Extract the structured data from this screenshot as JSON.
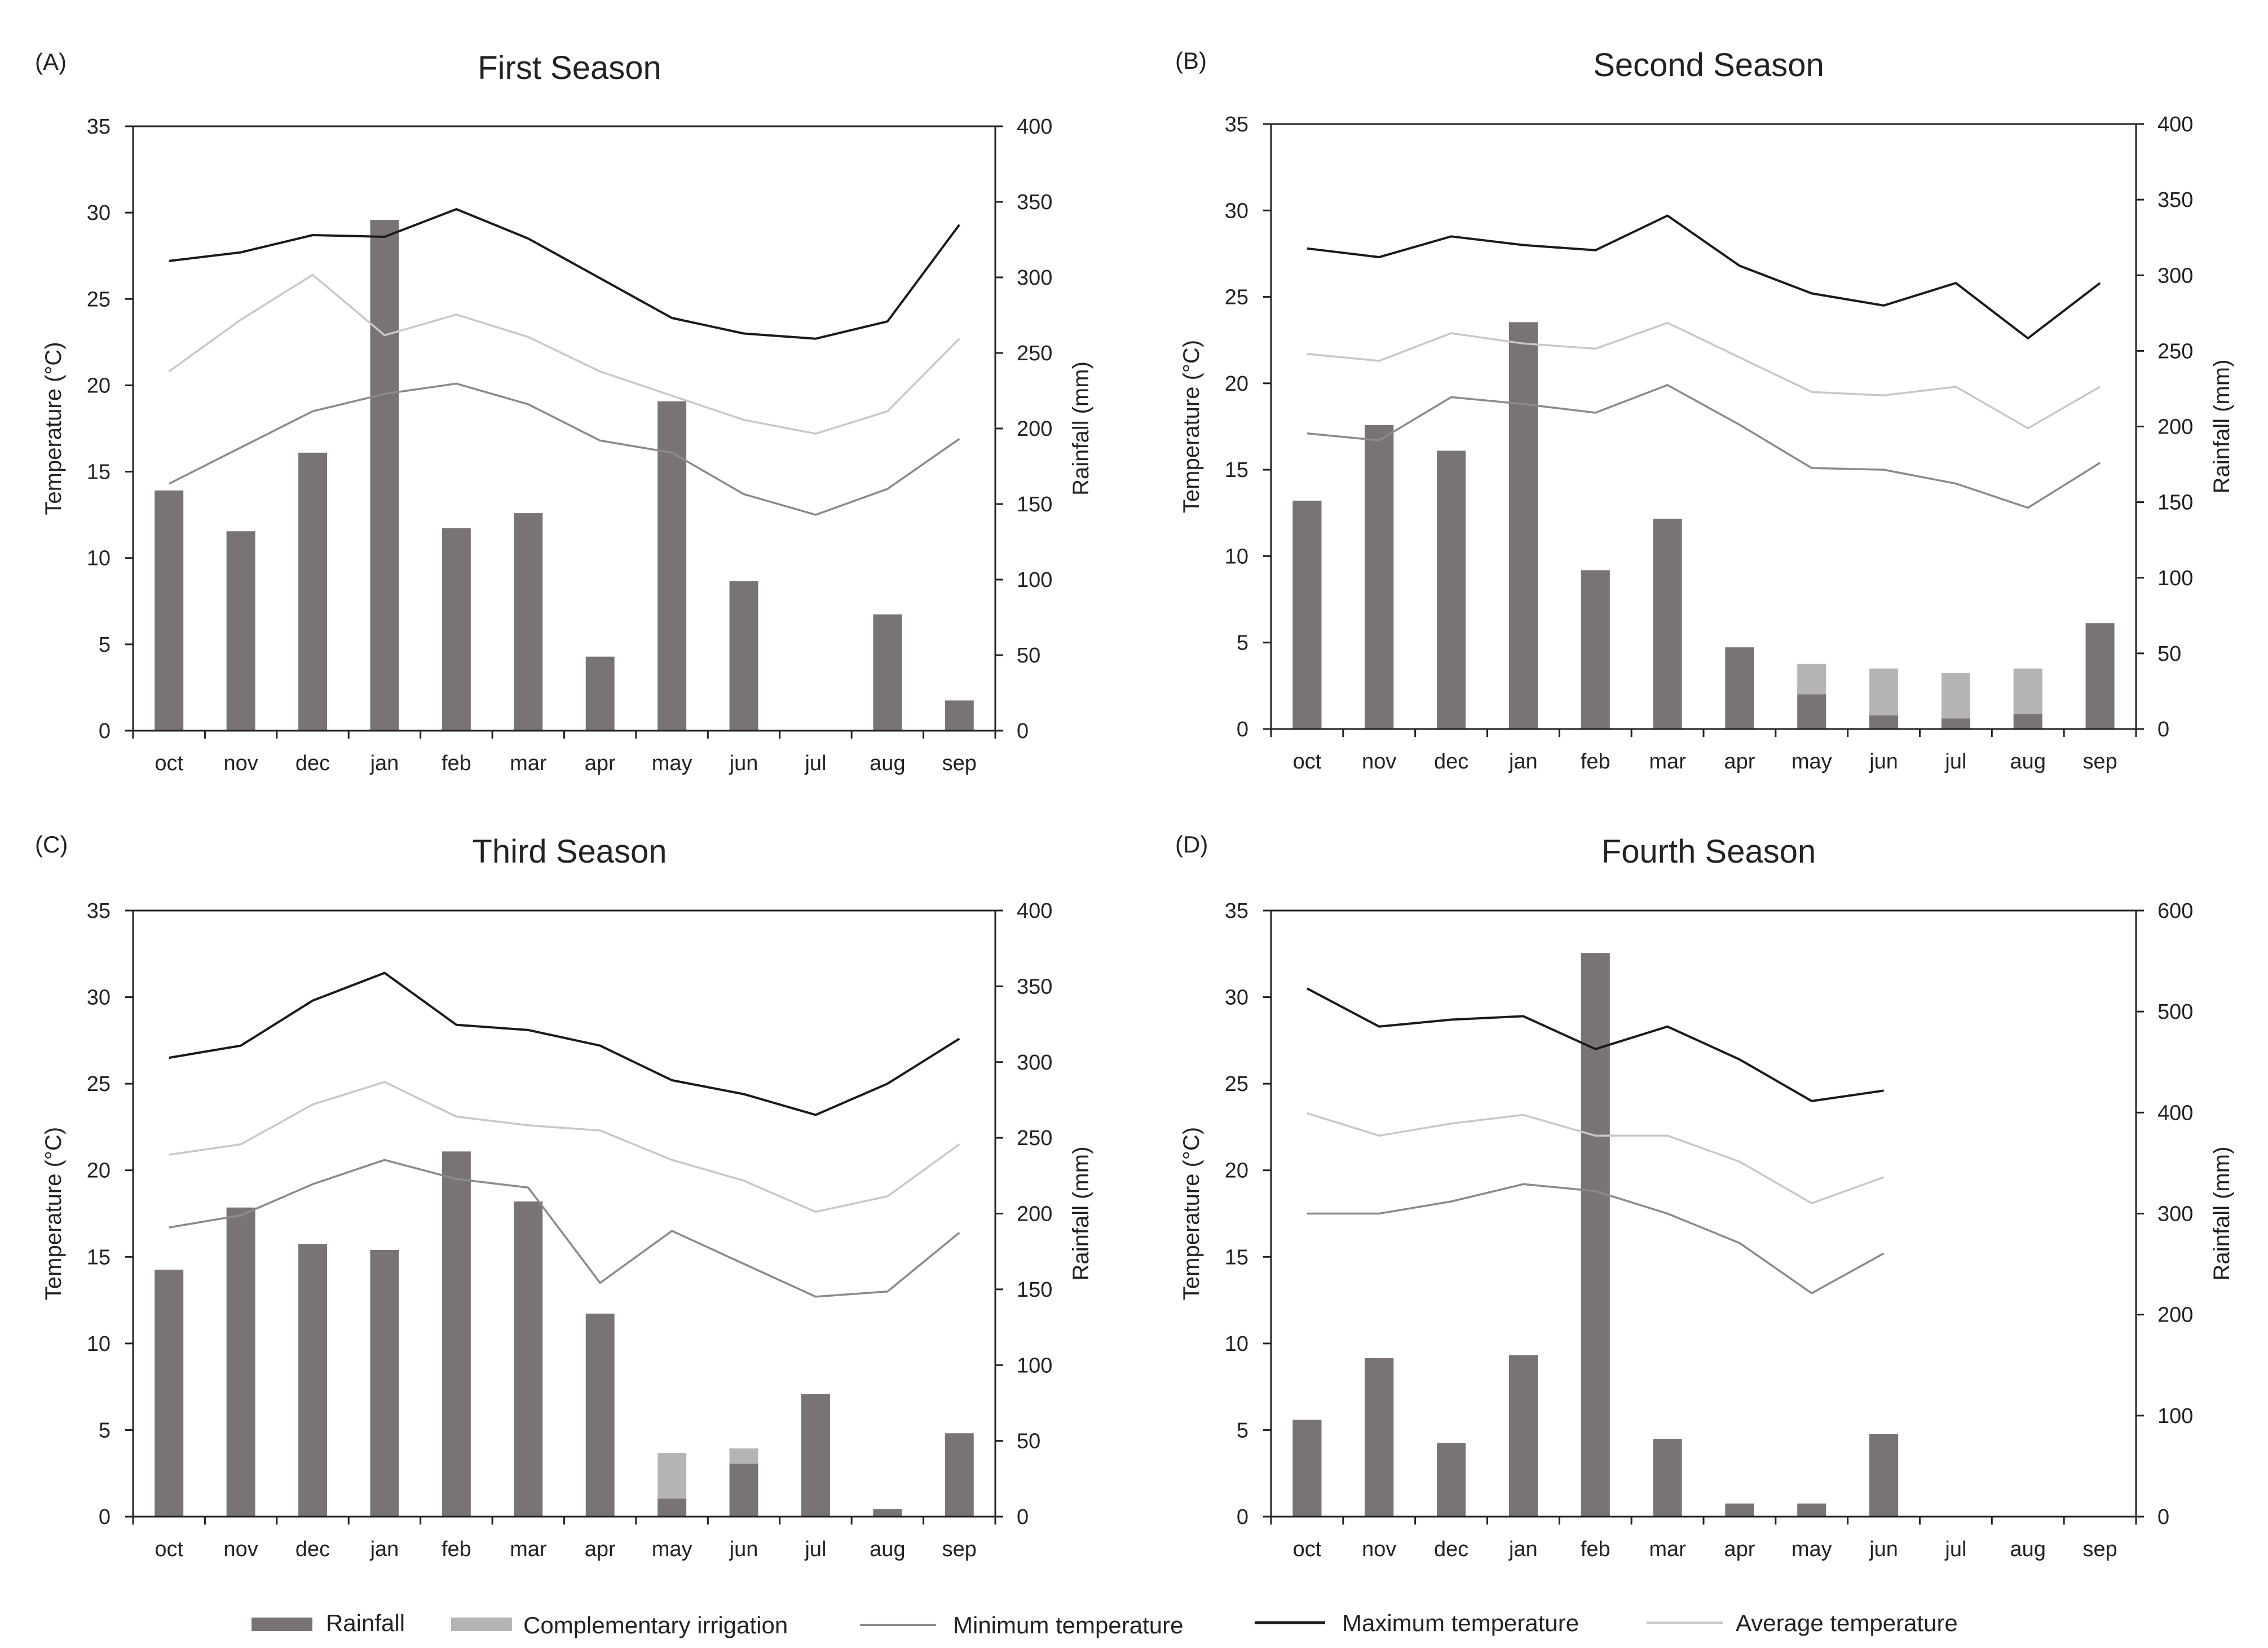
{
  "colors": {
    "rainfall": "#7a7374",
    "irrigation": "#b6b3b3",
    "min_temp": "#8a8a8a",
    "max_temp": "#1a1a1a",
    "avg_temp": "#c8c8c8",
    "axis": "#222222"
  },
  "legend": {
    "rainfall": "Rainfall",
    "irrigation": "Complementary irrigation",
    "min_temp": "Minimum temperature",
    "max_temp": "Maximum temperature",
    "avg_temp": "Average temperature"
  },
  "chart_data": [
    {
      "type": "bar+line",
      "panel": "(A)",
      "title": "First Season",
      "categories": [
        "oct",
        "nov",
        "dec",
        "jan",
        "feb",
        "mar",
        "apr",
        "may",
        "jun",
        "jul",
        "aug",
        "sep"
      ],
      "ylabel": "Temperature (°C)",
      "y2label": "Rainfall (mm)",
      "ylim": [
        0,
        35
      ],
      "yticks": [
        0,
        5,
        10,
        15,
        20,
        25,
        30,
        35
      ],
      "y2lim": [
        0,
        400
      ],
      "y2ticks": [
        0,
        50,
        100,
        150,
        200,
        250,
        300,
        350,
        400
      ],
      "rainfall": [
        159,
        132,
        184,
        338,
        134,
        144,
        49,
        218,
        99,
        0,
        77,
        20
      ],
      "irrigation": [
        0,
        0,
        0,
        0,
        0,
        0,
        0,
        0,
        0,
        0,
        0,
        0
      ],
      "max_temp": [
        27.2,
        27.7,
        28.7,
        28.6,
        30.2,
        28.5,
        26.2,
        23.9,
        23.0,
        22.7,
        23.7,
        29.3
      ],
      "avg_temp": [
        20.8,
        23.8,
        26.4,
        22.9,
        24.1,
        22.8,
        20.8,
        19.4,
        18.0,
        17.2,
        18.5,
        22.7
      ],
      "min_temp": [
        14.3,
        16.4,
        18.5,
        19.5,
        20.1,
        18.9,
        16.8,
        16.1,
        13.7,
        12.5,
        14.0,
        16.9
      ]
    },
    {
      "type": "bar+line",
      "panel": "(B)",
      "title": "Second Season",
      "categories": [
        "oct",
        "nov",
        "dec",
        "jan",
        "feb",
        "mar",
        "apr",
        "may",
        "jun",
        "jul",
        "aug",
        "sep"
      ],
      "ylabel": "Temperature (°C)",
      "y2label": "Rainfall (mm)",
      "ylim": [
        0,
        35
      ],
      "yticks": [
        0,
        5,
        10,
        15,
        20,
        25,
        30,
        35
      ],
      "y2lim": [
        0,
        400
      ],
      "y2ticks": [
        0,
        50,
        100,
        150,
        200,
        250,
        300,
        350,
        400
      ],
      "rainfall": [
        151,
        201,
        184,
        269,
        105,
        139,
        54,
        23,
        9,
        7,
        10,
        70
      ],
      "irrigation": [
        0,
        0,
        0,
        0,
        0,
        0,
        0,
        20,
        31,
        30,
        30,
        0
      ],
      "max_temp": [
        27.8,
        27.3,
        28.5,
        28.0,
        27.7,
        29.7,
        26.8,
        25.2,
        24.5,
        25.8,
        22.6,
        25.8
      ],
      "avg_temp": [
        21.7,
        21.3,
        22.9,
        22.3,
        22.0,
        23.5,
        21.5,
        19.5,
        19.3,
        19.8,
        17.4,
        19.8
      ],
      "min_temp": [
        17.1,
        16.7,
        19.2,
        18.8,
        18.3,
        19.9,
        17.6,
        15.1,
        15.0,
        14.2,
        12.8,
        15.4
      ]
    },
    {
      "type": "bar+line",
      "panel": "(C)",
      "title": "Third Season",
      "categories": [
        "oct",
        "nov",
        "dec",
        "jan",
        "feb",
        "mar",
        "apr",
        "may",
        "jun",
        "jul",
        "aug",
        "sep"
      ],
      "ylabel": "Temperature (°C)",
      "y2label": "Rainfall (mm)",
      "ylim": [
        0,
        35
      ],
      "yticks": [
        0,
        5,
        10,
        15,
        20,
        25,
        30,
        35
      ],
      "y2lim": [
        0,
        400
      ],
      "y2ticks": [
        0,
        50,
        100,
        150,
        200,
        250,
        300,
        350,
        400
      ],
      "rainfall": [
        163,
        204,
        180,
        176,
        241,
        208,
        134,
        12,
        35,
        81,
        5,
        55
      ],
      "irrigation": [
        0,
        0,
        0,
        0,
        0,
        0,
        0,
        30,
        10,
        0,
        0,
        0
      ],
      "max_temp": [
        26.5,
        27.2,
        29.8,
        31.4,
        28.4,
        28.1,
        27.2,
        25.2,
        24.4,
        23.2,
        25.0,
        27.6
      ],
      "avg_temp": [
        20.9,
        21.5,
        23.8,
        25.1,
        23.1,
        22.6,
        22.3,
        20.6,
        19.4,
        17.6,
        18.5,
        21.5
      ],
      "min_temp": [
        16.7,
        17.4,
        19.2,
        20.6,
        19.5,
        19.0,
        13.5,
        16.5,
        14.6,
        12.7,
        13.0,
        16.4
      ]
    },
    {
      "type": "bar+line",
      "panel": "(D)",
      "title": "Fourth Season",
      "categories": [
        "oct",
        "nov",
        "dec",
        "jan",
        "feb",
        "mar",
        "apr",
        "may",
        "jun",
        "jul",
        "aug",
        "sep"
      ],
      "ylabel": "Temperature (°C)",
      "y2label": "Rainfall (mm)",
      "ylim": [
        0,
        35
      ],
      "yticks": [
        0,
        5,
        10,
        15,
        20,
        25,
        30,
        35
      ],
      "y2lim": [
        0,
        600
      ],
      "y2ticks": [
        0,
        100,
        200,
        300,
        400,
        500,
        600
      ],
      "rainfall": [
        96,
        157,
        73,
        160,
        558,
        77,
        13,
        13,
        82,
        null,
        null,
        null
      ],
      "irrigation": [
        0,
        0,
        0,
        0,
        0,
        0,
        0,
        0,
        0,
        0,
        0,
        0
      ],
      "max_temp": [
        30.5,
        28.3,
        28.7,
        28.9,
        27.0,
        28.3,
        26.4,
        24.0,
        24.6,
        null,
        null,
        null
      ],
      "avg_temp": [
        23.3,
        22.0,
        22.7,
        23.2,
        22.0,
        22.0,
        20.5,
        18.1,
        19.6,
        null,
        null,
        null
      ],
      "min_temp": [
        17.5,
        17.5,
        18.2,
        19.2,
        18.8,
        17.5,
        15.8,
        12.9,
        15.2,
        null,
        null,
        null
      ]
    }
  ]
}
